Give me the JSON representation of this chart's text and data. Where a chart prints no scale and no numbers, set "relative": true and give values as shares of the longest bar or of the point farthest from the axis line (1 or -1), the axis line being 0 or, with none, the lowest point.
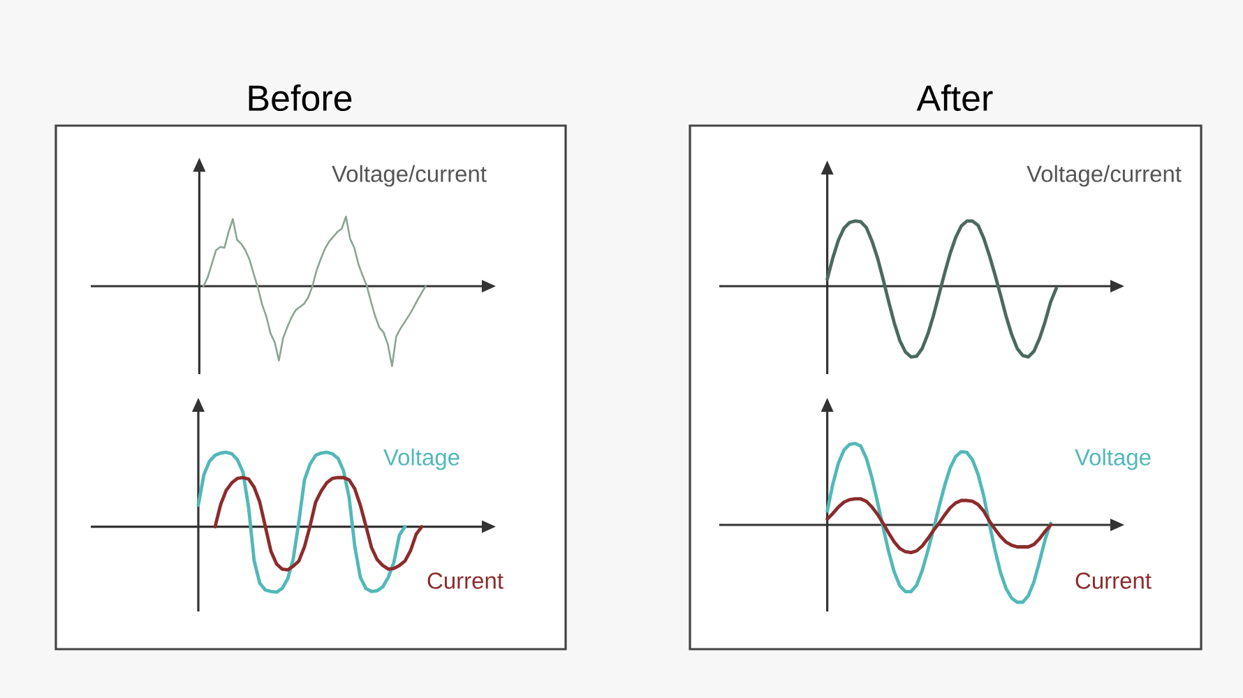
{
  "chart_data": [
    {
      "type": "line",
      "title": "Before",
      "ylabel": "Voltage/current",
      "relative": true,
      "categories": [
        null,
        null,
        null,
        null,
        null,
        null,
        null,
        null,
        null,
        null,
        null,
        null,
        null,
        null,
        null,
        null,
        null,
        null,
        null,
        null,
        null,
        null,
        null,
        null,
        null,
        null,
        null,
        null,
        null,
        null,
        null,
        null,
        null,
        null,
        null,
        null,
        null,
        null,
        null,
        null,
        null,
        null,
        null,
        null,
        null,
        null,
        null,
        null,
        null,
        null,
        null,
        null,
        null,
        null,
        null
      ],
      "series": [
        {
          "color": "#8aa593",
          "values": [
            null,
            0.0,
            0.11,
            0.28,
            0.45,
            0.49,
            0.48,
            0.68,
            0.84,
            0.58,
            0.53,
            0.45,
            0.33,
            0.15,
            -0.02,
            -0.23,
            -0.38,
            -0.59,
            -0.7,
            -0.93,
            -0.65,
            -0.51,
            -0.39,
            -0.3,
            -0.26,
            -0.22,
            -0.14,
            0.0,
            0.2,
            0.34,
            0.47,
            0.56,
            0.62,
            0.68,
            0.72,
            0.87,
            0.59,
            0.48,
            0.27,
            0.13,
            0.0,
            -0.2,
            -0.38,
            -0.52,
            -0.58,
            -0.73,
            -1.0,
            -0.63,
            -0.53,
            -0.45,
            -0.37,
            -0.28,
            -0.18,
            -0.09,
            0.0
          ]
        }
      ]
    },
    {
      "type": "line",
      "relative": true,
      "categories": [
        null,
        null,
        null,
        null,
        null,
        null,
        null,
        null,
        null,
        null,
        null,
        null,
        null,
        null,
        null,
        null,
        null,
        null,
        null,
        null,
        null,
        null,
        null,
        null,
        null,
        null,
        null,
        null,
        null,
        null,
        null,
        null,
        null,
        null,
        null,
        null,
        null,
        null,
        null,
        null,
        null
      ],
      "series": [
        {
          "name": "Voltage",
          "color": "#52b8b8",
          "values": [
            0.29,
            0.7,
            0.88,
            0.96,
            0.99,
            1.0,
            0.98,
            0.9,
            0.73,
            0.26,
            -0.46,
            -0.76,
            -0.85,
            -0.87,
            -0.88,
            -0.83,
            -0.7,
            -0.43,
            0.07,
            0.63,
            0.84,
            0.96,
            0.99,
            1.0,
            0.98,
            0.92,
            0.75,
            0.39,
            -0.26,
            -0.68,
            -0.83,
            -0.87,
            -0.86,
            -0.81,
            -0.68,
            -0.48,
            -0.11,
            0.0,
            null,
            null,
            null
          ]
        },
        {
          "name": "Current",
          "color": "#8b2c2c",
          "values": [
            null,
            null,
            null,
            0.0,
            0.3,
            0.49,
            0.59,
            0.65,
            0.66,
            0.64,
            0.53,
            0.33,
            0.0,
            -0.33,
            -0.5,
            -0.57,
            -0.58,
            -0.53,
            -0.46,
            -0.27,
            0.01,
            0.33,
            0.48,
            0.59,
            0.65,
            0.66,
            0.66,
            0.63,
            0.51,
            0.29,
            0.01,
            -0.28,
            -0.44,
            -0.52,
            -0.57,
            -0.56,
            -0.52,
            -0.46,
            -0.32,
            -0.1,
            0.0
          ]
        }
      ]
    },
    {
      "type": "line",
      "title": "After",
      "ylabel": "Voltage/current",
      "relative": true,
      "categories": [
        null,
        null,
        null,
        null,
        null,
        null,
        null,
        null,
        null,
        null,
        null,
        null,
        null,
        null,
        null,
        null,
        null,
        null,
        null,
        null,
        null,
        null,
        null,
        null,
        null,
        null,
        null,
        null,
        null,
        null,
        null,
        null,
        null,
        null,
        null,
        null,
        null,
        null,
        null,
        null,
        null,
        null
      ],
      "series": [
        {
          "color": "#4b6a5f",
          "values": [
            0.1,
            0.4,
            0.65,
            0.82,
            0.9,
            0.92,
            0.91,
            0.83,
            0.64,
            0.4,
            0.1,
            -0.22,
            -0.52,
            -0.77,
            -0.93,
            -1.0,
            -0.99,
            -0.88,
            -0.68,
            -0.42,
            -0.12,
            0.18,
            0.46,
            0.69,
            0.85,
            0.92,
            0.92,
            0.86,
            0.68,
            0.44,
            0.17,
            -0.12,
            -0.42,
            -0.68,
            -0.88,
            -0.98,
            -1.0,
            -0.92,
            -0.74,
            -0.5,
            -0.22,
            -0.03
          ]
        }
      ]
    },
    {
      "type": "line",
      "relative": true,
      "categories": [
        null,
        null,
        null,
        null,
        null,
        null,
        null,
        null,
        null,
        null,
        null,
        null,
        null,
        null,
        null,
        null,
        null,
        null,
        null,
        null,
        null,
        null,
        null,
        null,
        null,
        null,
        null,
        null,
        null,
        null,
        null,
        null,
        null,
        null,
        null,
        null,
        null,
        null,
        null,
        null,
        null
      ],
      "series": [
        {
          "name": "Voltage",
          "color": "#52b8b8",
          "values": [
            0.17,
            0.5,
            0.76,
            0.92,
            0.99,
            1.0,
            0.97,
            0.82,
            0.58,
            0.28,
            -0.03,
            -0.33,
            -0.58,
            -0.75,
            -0.82,
            -0.82,
            -0.74,
            -0.56,
            -0.32,
            -0.06,
            0.22,
            0.48,
            0.7,
            0.84,
            0.9,
            0.89,
            0.8,
            0.62,
            0.36,
            0.02,
            -0.3,
            -0.58,
            -0.78,
            -0.9,
            -0.95,
            -0.95,
            -0.87,
            -0.7,
            -0.45,
            -0.18,
            0.02
          ]
        },
        {
          "name": "Current",
          "color": "#8b2c2c",
          "values": [
            0.07,
            0.14,
            0.22,
            0.28,
            0.31,
            0.32,
            0.32,
            0.29,
            0.22,
            0.13,
            0.02,
            -0.1,
            -0.21,
            -0.29,
            -0.33,
            -0.34,
            -0.32,
            -0.26,
            -0.17,
            -0.07,
            0.02,
            0.12,
            0.21,
            0.27,
            0.3,
            0.3,
            0.29,
            0.25,
            0.17,
            0.05,
            -0.05,
            -0.14,
            -0.21,
            -0.25,
            -0.27,
            -0.27,
            -0.27,
            -0.24,
            -0.17,
            -0.08,
            0.0
          ]
        }
      ]
    }
  ]
}
